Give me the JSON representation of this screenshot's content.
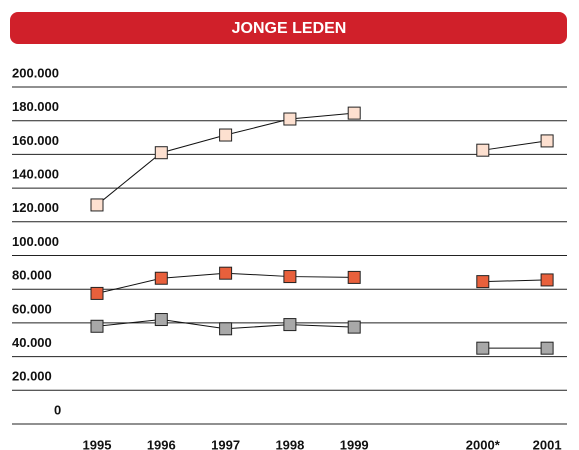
{
  "chart_data": {
    "type": "line",
    "title": "JONGE LEDEN",
    "categories": [
      "1995",
      "1996",
      "1997",
      "1998",
      "1999",
      null,
      "2000*",
      "2001"
    ],
    "series": [
      {
        "color": "#fde0d0",
        "values": [
          130000,
          161000,
          171500,
          181000,
          184500,
          null,
          162500,
          168000
        ]
      },
      {
        "color": "#e8603c",
        "values": [
          77500,
          86500,
          89500,
          87500,
          87000,
          null,
          84500,
          85500
        ]
      },
      {
        "color": "#a8a8a8",
        "values": [
          58000,
          62000,
          56500,
          59000,
          57500,
          null,
          45000,
          45000
        ]
      }
    ],
    "ylim": [
      0,
      200000
    ],
    "yticks": [
      0,
      {
        "value": 20000,
        "label": "20.000"
      },
      {
        "value": 40000,
        "label": "40.000"
      },
      {
        "value": 60000,
        "label": "60.000"
      },
      {
        "value": 80000,
        "label": "80.000"
      },
      {
        "value": 100000,
        "label": "100.000"
      },
      {
        "value": 120000,
        "label": "120.000"
      },
      {
        "value": 140000,
        "label": "140.000"
      },
      {
        "value": 160000,
        "label": "160.000"
      },
      {
        "value": 180000,
        "label": "180.000"
      },
      {
        "value": 200000,
        "label": "200.000"
      }
    ],
    "grid": true
  }
}
